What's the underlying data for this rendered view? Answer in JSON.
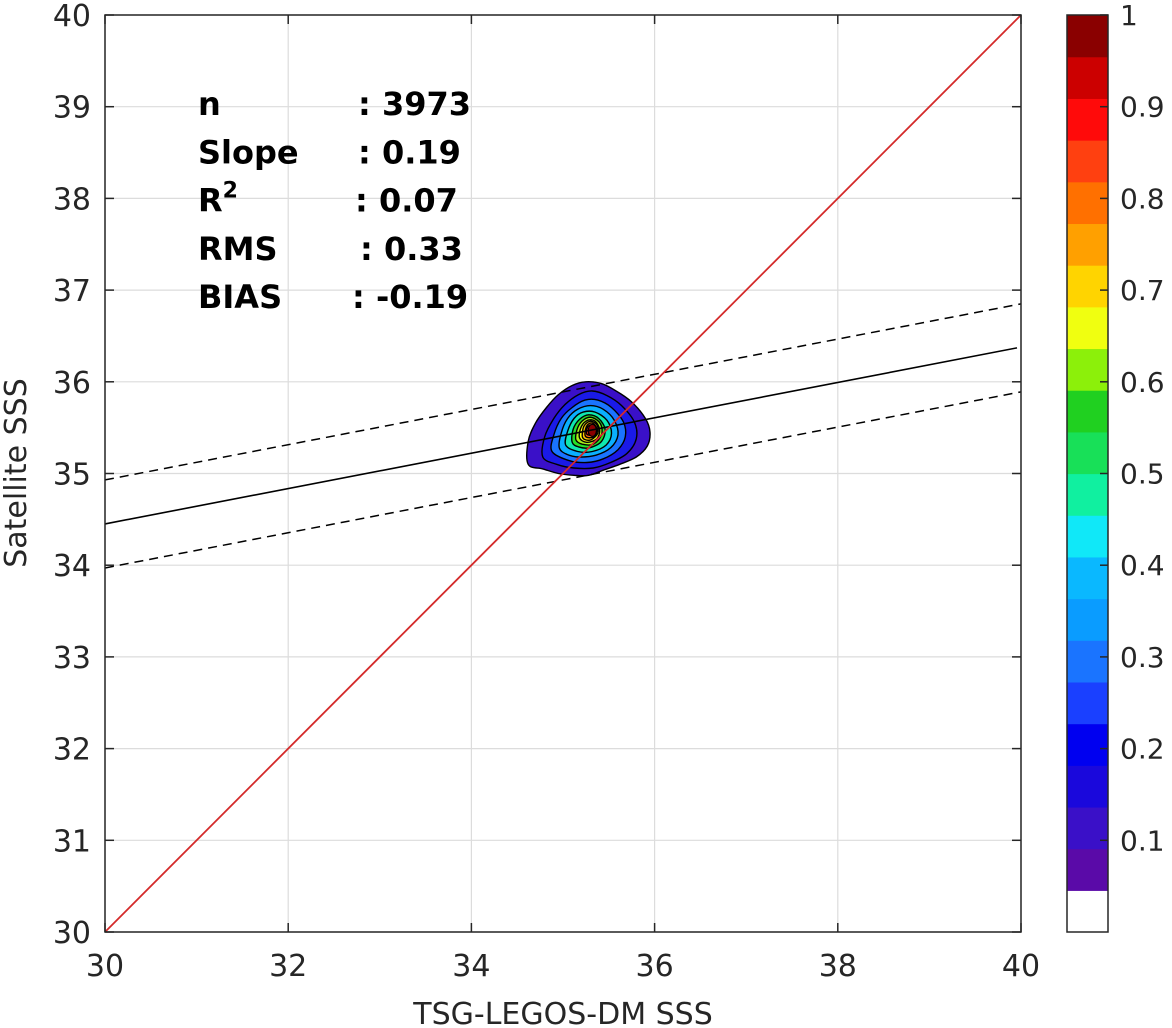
{
  "chart_data": {
    "type": "heatmap",
    "title": "",
    "xlabel": "TSG-LEGOS-DM SSS",
    "ylabel": "Satellite SSS",
    "xlim": [
      30,
      40
    ],
    "ylim": [
      30,
      40
    ],
    "x_ticks": [
      "30",
      "32",
      "34",
      "36",
      "38",
      "40"
    ],
    "y_ticks": [
      "30",
      "31",
      "32",
      "33",
      "34",
      "35",
      "36",
      "37",
      "38",
      "39",
      "40"
    ],
    "grid": true,
    "stats": [
      {
        "label": "n",
        "value": ": 3973"
      },
      {
        "label": "Slope",
        "value": ": 0.19"
      },
      {
        "label": "R",
        "sup": "2",
        "value": ": 0.07"
      },
      {
        "label": "RMS",
        "value": ": 0.33"
      },
      {
        "label": "BIAS",
        "value": ": -0.19"
      }
    ],
    "identity_line": {
      "x": [
        30,
        40
      ],
      "y": [
        30,
        40
      ],
      "color": "#d42a2a"
    },
    "regression_line": {
      "x": [
        30,
        40
      ],
      "y": [
        34.45,
        36.37
      ],
      "color": "#000000"
    },
    "regression_bounds": [
      {
        "x": [
          30,
          40
        ],
        "y": [
          34.93,
          36.85
        ],
        "style": "dashed"
      },
      {
        "x": [
          30,
          40
        ],
        "y": [
          33.97,
          35.89
        ],
        "style": "dashed"
      }
    ],
    "density_peak": {
      "x": 35.32,
      "y": 35.47
    },
    "density_contours": [
      {
        "level": 0.05,
        "color": "#3a10c8",
        "pts": [
          [
            34.62,
            35.1
          ],
          [
            34.62,
            35.35
          ],
          [
            34.7,
            35.55
          ],
          [
            34.82,
            35.72
          ],
          [
            34.95,
            35.86
          ],
          [
            35.1,
            35.96
          ],
          [
            35.25,
            36.0
          ],
          [
            35.42,
            35.98
          ],
          [
            35.58,
            35.9
          ],
          [
            35.75,
            35.78
          ],
          [
            35.9,
            35.6
          ],
          [
            35.95,
            35.45
          ],
          [
            35.92,
            35.3
          ],
          [
            35.8,
            35.18
          ],
          [
            35.62,
            35.1
          ],
          [
            35.45,
            35.04
          ],
          [
            35.28,
            34.98
          ],
          [
            35.12,
            34.98
          ],
          [
            34.95,
            35.0
          ],
          [
            34.78,
            35.05
          ]
        ]
      },
      {
        "level": 0.15,
        "color": "#1a1ae8",
        "pts": [
          [
            34.78,
            35.18
          ],
          [
            34.8,
            35.4
          ],
          [
            34.9,
            35.6
          ],
          [
            35.02,
            35.75
          ],
          [
            35.17,
            35.86
          ],
          [
            35.32,
            35.9
          ],
          [
            35.48,
            35.85
          ],
          [
            35.64,
            35.74
          ],
          [
            35.78,
            35.56
          ],
          [
            35.8,
            35.38
          ],
          [
            35.7,
            35.22
          ],
          [
            35.52,
            35.12
          ],
          [
            35.33,
            35.06
          ],
          [
            35.12,
            35.06
          ],
          [
            34.93,
            35.1
          ]
        ]
      },
      {
        "level": 0.25,
        "color": "#1a74ff",
        "pts": [
          [
            34.88,
            35.24
          ],
          [
            34.9,
            35.42
          ],
          [
            34.98,
            35.6
          ],
          [
            35.1,
            35.72
          ],
          [
            35.24,
            35.8
          ],
          [
            35.38,
            35.8
          ],
          [
            35.53,
            35.72
          ],
          [
            35.66,
            35.56
          ],
          [
            35.68,
            35.4
          ],
          [
            35.6,
            35.26
          ],
          [
            35.44,
            35.16
          ],
          [
            35.26,
            35.12
          ],
          [
            35.07,
            35.14
          ]
        ]
      },
      {
        "level": 0.35,
        "color": "#0ab0ff",
        "pts": [
          [
            34.96,
            35.28
          ],
          [
            34.98,
            35.44
          ],
          [
            35.05,
            35.6
          ],
          [
            35.16,
            35.7
          ],
          [
            35.3,
            35.74
          ],
          [
            35.44,
            35.7
          ],
          [
            35.56,
            35.58
          ],
          [
            35.6,
            35.42
          ],
          [
            35.52,
            35.28
          ],
          [
            35.36,
            35.2
          ],
          [
            35.18,
            35.18
          ],
          [
            35.04,
            35.21
          ]
        ]
      },
      {
        "level": 0.45,
        "color": "#10e8b0",
        "pts": [
          [
            35.03,
            35.31
          ],
          [
            35.05,
            35.46
          ],
          [
            35.12,
            35.6
          ],
          [
            35.22,
            35.67
          ],
          [
            35.35,
            35.67
          ],
          [
            35.48,
            35.58
          ],
          [
            35.53,
            35.44
          ],
          [
            35.47,
            35.31
          ],
          [
            35.32,
            35.24
          ],
          [
            35.16,
            35.24
          ]
        ]
      },
      {
        "level": 0.55,
        "color": "#28e028",
        "pts": [
          [
            35.1,
            35.34
          ],
          [
            35.11,
            35.48
          ],
          [
            35.18,
            35.59
          ],
          [
            35.28,
            35.64
          ],
          [
            35.39,
            35.6
          ],
          [
            35.46,
            35.48
          ],
          [
            35.42,
            35.35
          ],
          [
            35.29,
            35.28
          ],
          [
            35.17,
            35.29
          ]
        ]
      },
      {
        "level": 0.62,
        "color": "#a8f01a",
        "pts": [
          [
            35.14,
            35.37
          ],
          [
            35.16,
            35.5
          ],
          [
            35.23,
            35.59
          ],
          [
            35.32,
            35.61
          ],
          [
            35.41,
            35.54
          ],
          [
            35.42,
            35.42
          ],
          [
            35.33,
            35.32
          ],
          [
            35.21,
            35.32
          ]
        ]
      },
      {
        "level": 0.68,
        "color": "#ffff10",
        "pts": [
          [
            35.18,
            35.39
          ],
          [
            35.2,
            35.51
          ],
          [
            35.27,
            35.58
          ],
          [
            35.35,
            35.57
          ],
          [
            35.4,
            35.48
          ],
          [
            35.37,
            35.38
          ],
          [
            35.26,
            35.34
          ]
        ]
      },
      {
        "level": 0.74,
        "color": "#ffc400",
        "pts": [
          [
            35.21,
            35.41
          ],
          [
            35.23,
            35.52
          ],
          [
            35.3,
            35.57
          ],
          [
            35.37,
            35.53
          ],
          [
            35.38,
            35.44
          ],
          [
            35.31,
            35.37
          ],
          [
            35.24,
            35.37
          ]
        ]
      },
      {
        "level": 0.8,
        "color": "#ff6a10",
        "pts": [
          [
            35.24,
            35.42
          ],
          [
            35.26,
            35.52
          ],
          [
            35.32,
            35.55
          ],
          [
            35.37,
            35.49
          ],
          [
            35.35,
            35.41
          ],
          [
            35.28,
            35.39
          ]
        ]
      },
      {
        "level": 0.88,
        "color": "#ff2a10",
        "pts": [
          [
            35.26,
            35.43
          ],
          [
            35.27,
            35.51
          ],
          [
            35.33,
            35.53
          ],
          [
            35.36,
            35.47
          ],
          [
            35.33,
            35.42
          ]
        ]
      },
      {
        "level": 0.94,
        "color": "#cc0000",
        "pts": [
          [
            35.28,
            35.44
          ],
          [
            35.29,
            35.5
          ],
          [
            35.33,
            35.51
          ],
          [
            35.35,
            35.46
          ],
          [
            35.31,
            35.43
          ]
        ]
      }
    ],
    "colorbar": {
      "range": [
        0,
        1
      ],
      "ticks": [
        "0.1",
        "0.2",
        "0.3",
        "0.4",
        "0.5",
        "0.6",
        "0.7",
        "0.8",
        "0.9",
        "1"
      ],
      "colors": [
        "#ffffff",
        "#5a0aa8",
        "#3a10c8",
        "#1a08dc",
        "#0000f0",
        "#1a40ff",
        "#1a74ff",
        "#0a9cff",
        "#0ab8ff",
        "#10e8f8",
        "#10f0a0",
        "#18e058",
        "#20d020",
        "#8cf00a",
        "#f0ff10",
        "#ffd400",
        "#ffa000",
        "#ff7000",
        "#ff4010",
        "#ff0a0a",
        "#cc0000",
        "#8a0000"
      ]
    }
  }
}
